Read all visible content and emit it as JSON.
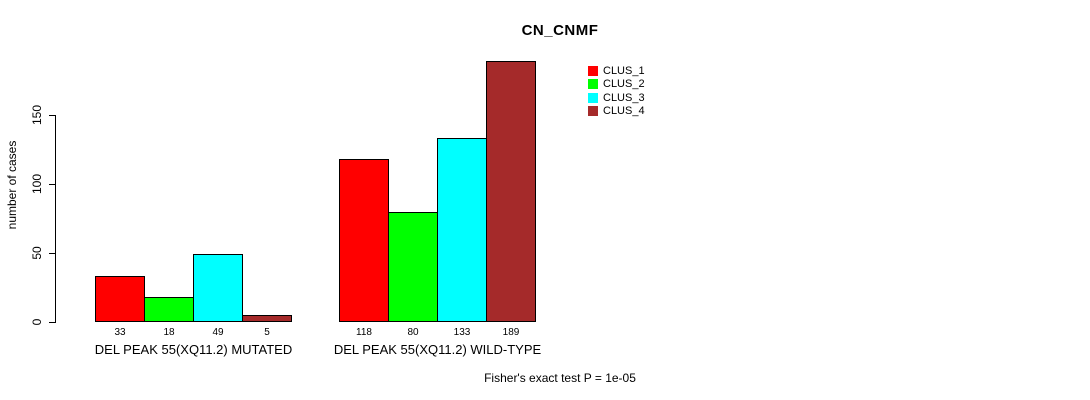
{
  "title": "CN_CNMF",
  "footer": {
    "text": "Fisher's exact test P = 1e-05"
  },
  "chart_data": {
    "type": "bar",
    "title": "CN_CNMF",
    "xlabel": "",
    "ylabel": "number of cases",
    "yticks": [
      0,
      50,
      100,
      150
    ],
    "ylim": [
      0,
      195
    ],
    "grid": false,
    "legend_position": "top-right",
    "bar_value_labels_shown": true,
    "categories": [
      "DEL PEAK 55(XQ11.2) MUTATED",
      "DEL PEAK 55(XQ11.2) WILD-TYPE"
    ],
    "series": [
      {
        "name": "CLUS_1",
        "color": "#FF0000",
        "values": [
          33,
          118
        ]
      },
      {
        "name": "CLUS_2",
        "color": "#00FF00",
        "values": [
          18,
          80
        ]
      },
      {
        "name": "CLUS_3",
        "color": "#00FFFF",
        "values": [
          49,
          133
        ]
      },
      {
        "name": "CLUS_4",
        "color": "#A52A2A",
        "values": [
          5,
          189
        ]
      }
    ],
    "groups": [
      {
        "label": "DEL PEAK 55(XQ11.2) MUTATED",
        "values": [
          33,
          18,
          49,
          5
        ]
      },
      {
        "label": "DEL PEAK 55(XQ11.2) WILD-TYPE",
        "values": [
          118,
          80,
          133,
          189
        ]
      }
    ]
  }
}
